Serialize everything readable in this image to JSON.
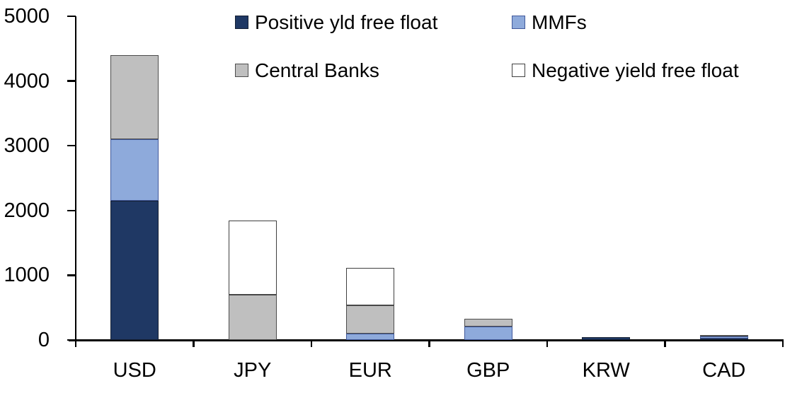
{
  "chart_data": {
    "type": "bar",
    "stacked": true,
    "title": "",
    "xlabel": "",
    "ylabel": "",
    "categories": [
      "USD",
      "JPY",
      "EUR",
      "GBP",
      "KRW",
      "CAD"
    ],
    "series": [
      {
        "name": "Positive yld free float",
        "color": "#1F3864",
        "border": "#141F33",
        "values": [
          2150,
          0,
          0,
          0,
          45,
          25
        ]
      },
      {
        "name": "MMFs",
        "color": "#8EAADB",
        "border": "#41599B",
        "values": [
          950,
          0,
          100,
          210,
          0,
          25
        ]
      },
      {
        "name": "Central Banks",
        "color": "#BFBFBF",
        "border": "#4D4D4D",
        "values": [
          1300,
          700,
          440,
          120,
          0,
          25
        ]
      },
      {
        "name": "Negative yield free float",
        "color": "#FFFFFF",
        "border": "#404040",
        "values": [
          0,
          1150,
          570,
          0,
          0,
          0
        ]
      }
    ],
    "totals": [
      4400,
      1850,
      1110,
      330,
      45,
      75
    ],
    "ylim": [
      0,
      5000
    ],
    "ytick_interval": 1000,
    "ytick_labels": [
      "0",
      "1000",
      "2000",
      "3000",
      "4000",
      "5000"
    ],
    "grid": false,
    "legend_position": "top-center",
    "legend_rows": [
      [
        0,
        1
      ],
      [
        2,
        3
      ]
    ],
    "axis_color": "#000000",
    "text_color": "#000000",
    "background": "#FFFFFF"
  }
}
